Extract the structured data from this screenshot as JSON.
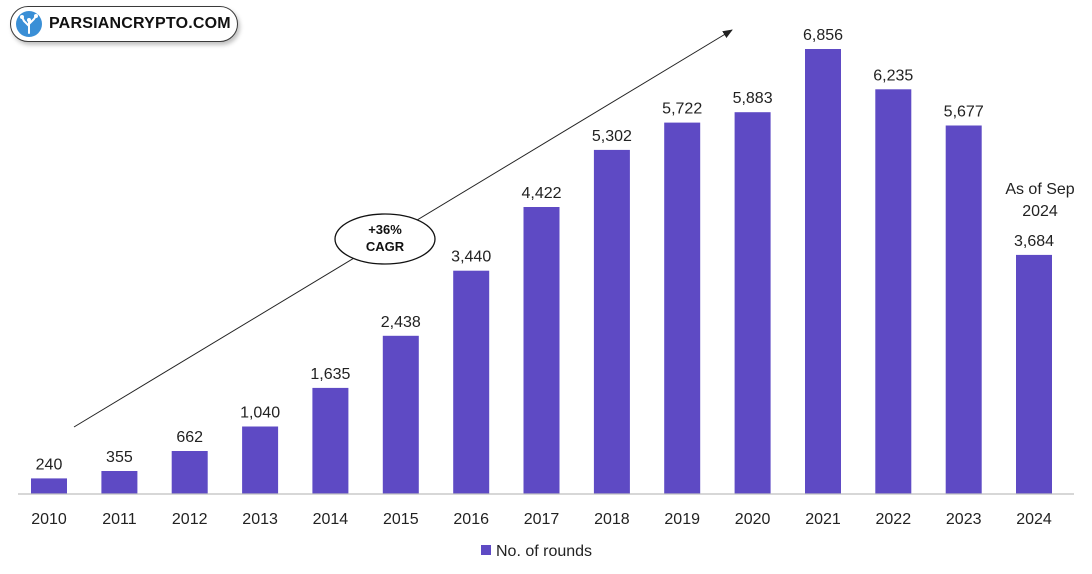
{
  "logo": {
    "text": "PARSIANCRYPTO.COM"
  },
  "chart_data": {
    "type": "bar",
    "categories": [
      "2010",
      "2011",
      "2012",
      "2013",
      "2014",
      "2015",
      "2016",
      "2017",
      "2018",
      "2019",
      "2020",
      "2021",
      "2022",
      "2023",
      "2024"
    ],
    "values": [
      240,
      355,
      662,
      1040,
      1635,
      2438,
      3440,
      4422,
      5302,
      5722,
      5883,
      6856,
      6235,
      5677,
      3684
    ],
    "data_labels": [
      "240",
      "355",
      "662",
      "1,040",
      "1,635",
      "2,438",
      "3,440",
      "4,422",
      "5,302",
      "5,722",
      "5,883",
      "6,856",
      "6,235",
      "5,677",
      "3,684"
    ],
    "series": [
      {
        "name": "No. of rounds",
        "values": [
          240,
          355,
          662,
          1040,
          1635,
          2438,
          3440,
          4422,
          5302,
          5722,
          5883,
          6856,
          6235,
          5677,
          3684
        ]
      }
    ],
    "title": "",
    "xlabel": "",
    "ylabel": "",
    "ylim": [
      0,
      6856
    ],
    "grid": false,
    "legend": {
      "position": "bottom",
      "labels": [
        "No. of rounds"
      ]
    },
    "bar_color": "#5e4ac4",
    "annotations": {
      "cagr_line1": "+36%",
      "cagr_line2": "CAGR",
      "note_line1": "As of Sep",
      "note_line2": "2024"
    }
  }
}
